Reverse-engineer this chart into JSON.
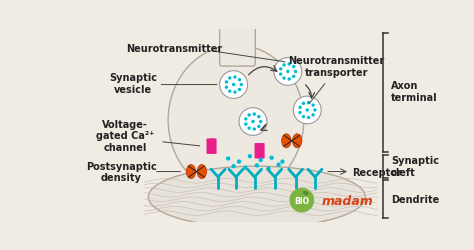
{
  "bg_color": "#f0ebe3",
  "colors": {
    "background": "#f0ebe3",
    "terminal_fill": "#ede8e0",
    "terminal_edge": "#b0a898",
    "dendrite_fill": "#e8e3da",
    "dendrite_edge": "#b0a898",
    "vesicle_fill": "white",
    "vesicle_edge": "#999999",
    "dot_color": "#00bcd4",
    "channel_pink": "#e91e8c",
    "receptor_teal": "#00acc1",
    "orange_channel": "#e65100",
    "orange_edge": "#bf360c",
    "text_color": "#222222",
    "arrow_color": "#444444",
    "bracket_color": "#333333",
    "biomadam_green": "#7cb342",
    "biomadam_text": "#d84315",
    "fiber_color": "#c0b8b0"
  },
  "labels": {
    "neurotransmitter": "Neurotransmitter",
    "synaptic_vesicle": "Synaptic\nvesicle",
    "voltage_gated": "Voltage-\ngated Ca²⁺\nchannel",
    "postsynaptic_density": "Postsynaptic\ndensity",
    "nt_transporter": "Neurotransmitter\ntransporter",
    "receptor": "Receptor",
    "axon_terminal": "Axon\nterminal",
    "synaptic_cleft": "Synaptic\ncleft",
    "dendrite": "Dendrite"
  },
  "font_sizes": {
    "label": 7.0,
    "bracket_label": 7.0
  }
}
